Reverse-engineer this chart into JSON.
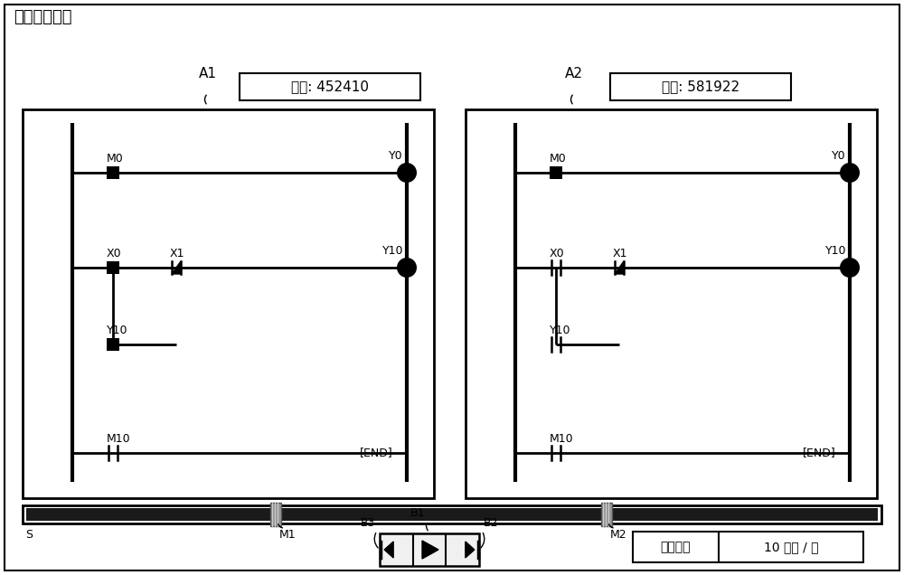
{
  "title": "事件播放画面",
  "panel1_label": "A1",
  "panel1_index": "索引: 452410",
  "panel2_label": "A2",
  "panel2_index": "索引: 581922",
  "bg_color": "#ffffff",
  "fg_color": "#000000",
  "speed_label": "播放速度",
  "speed_value": "10 索引 / 秒",
  "s_label": "S",
  "m1_label": "M1",
  "m2_label": "M2",
  "b1_label": "B1",
  "b2_label": "B2",
  "b3_label": "B3"
}
